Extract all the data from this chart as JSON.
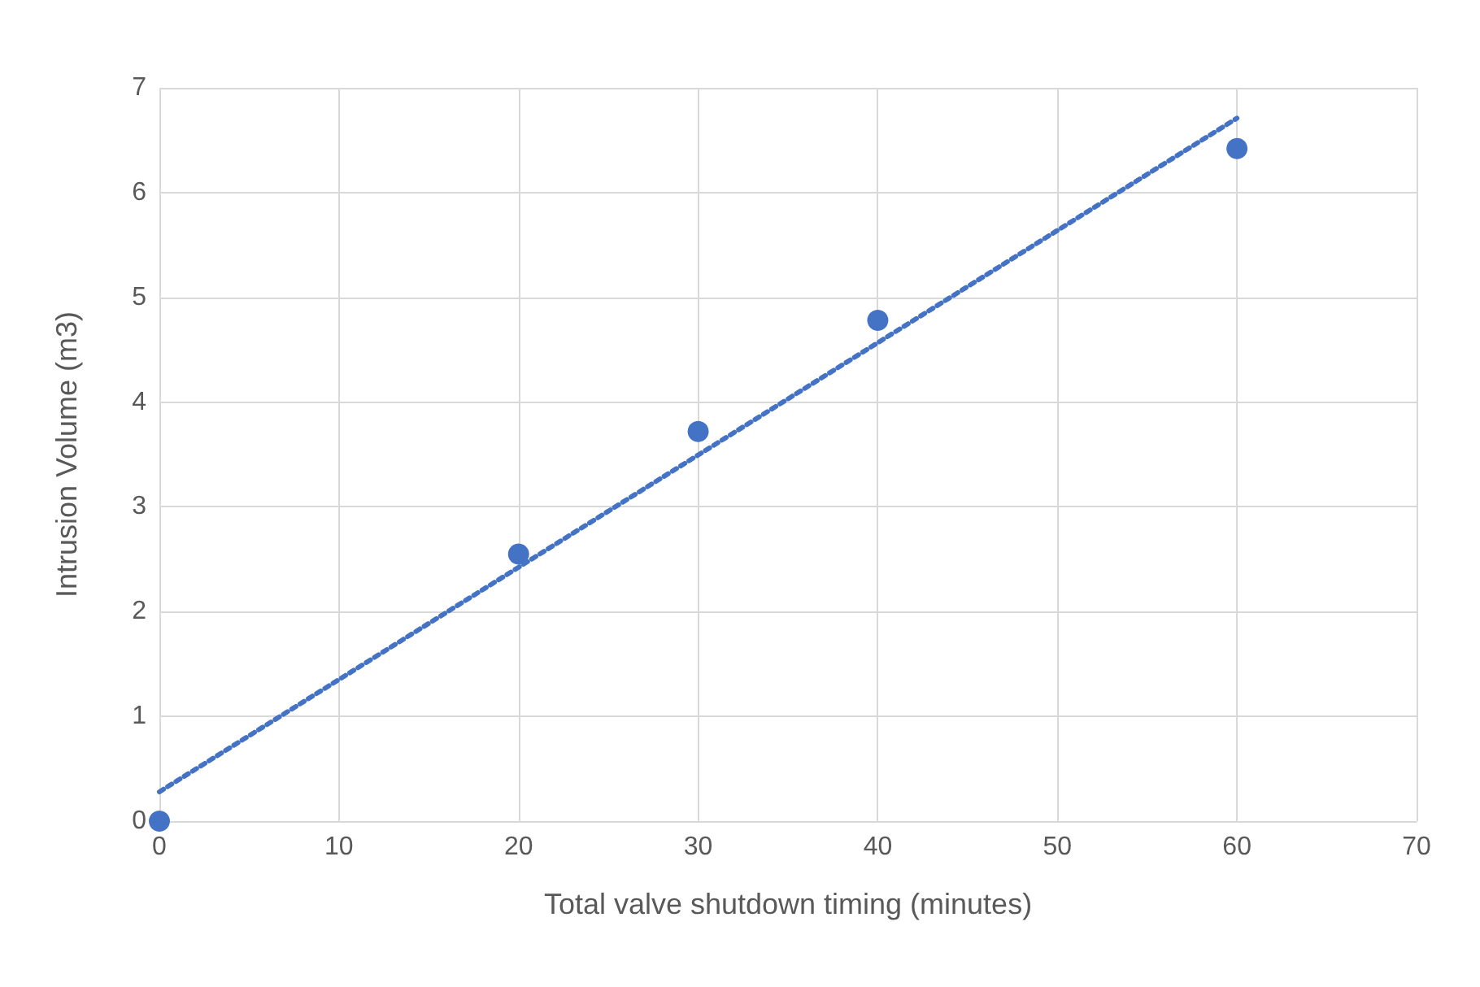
{
  "chart_data": {
    "type": "scatter",
    "xlabel": "Total valve shutdown timing (minutes)",
    "ylabel": "Intrusion Volume (m3)",
    "xlim": [
      0,
      70
    ],
    "xticks": [
      0,
      10,
      20,
      30,
      40,
      50,
      60,
      70
    ],
    "ylim": [
      0,
      7
    ],
    "yticks": [
      0,
      1,
      2,
      3,
      4,
      5,
      6,
      7
    ],
    "grid": true,
    "marker": "circle",
    "series": [
      {
        "color": "#4472c4",
        "x": [
          0,
          20,
          30,
          40,
          60
        ],
        "values": [
          0,
          2.55,
          3.72,
          4.78,
          6.42
        ]
      },
      {
        "type": "line",
        "color": "#4472c4",
        "x": [
          0,
          60
        ],
        "values": [
          0.28,
          6.71
        ],
        "marker": "none",
        "line_style": "dotted"
      }
    ]
  }
}
